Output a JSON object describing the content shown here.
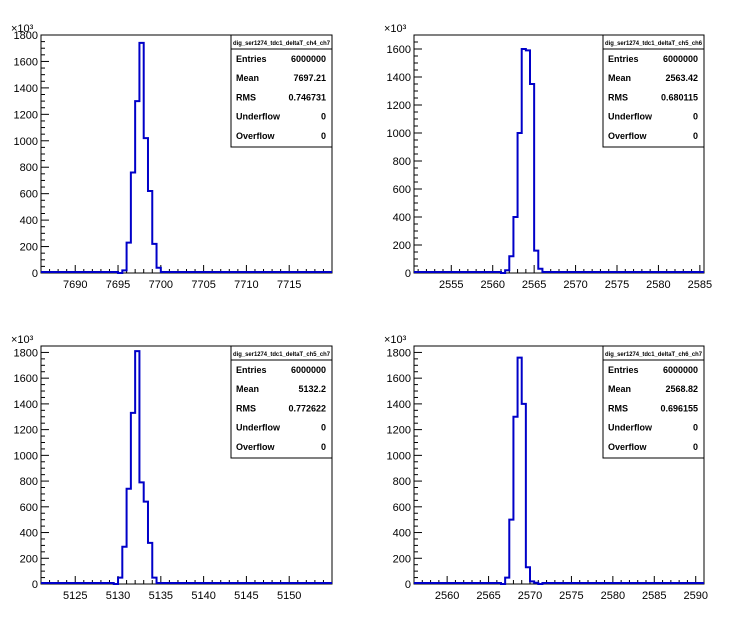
{
  "chart_data": [
    {
      "type": "bar",
      "stats": {
        "title": "dig_ser1274_tdc1_deltaT_ch4_ch7",
        "rows": [
          {
            "label": "Entries",
            "value": "6000000"
          },
          {
            "label": "Mean",
            "value": "7697.21"
          },
          {
            "label": "RMS",
            "value": "0.746731"
          },
          {
            "label": "Underflow",
            "value": "0"
          },
          {
            "label": "Overflow",
            "value": "0"
          }
        ]
      },
      "y_multiplier": "×10³",
      "xlim": [
        7686,
        7720
      ],
      "ylim": [
        0,
        1800
      ],
      "x_ticks": [
        "7690",
        "7695",
        "7700",
        "7705",
        "7710",
        "7715"
      ],
      "y_ticks": [
        "0",
        "200",
        "400",
        "600",
        "800",
        "1000",
        "1200",
        "1400",
        "1600",
        "1800"
      ],
      "bin_width": 0.5,
      "x": [
        7695.0,
        7695.5,
        7696.0,
        7696.5,
        7697.0,
        7697.5,
        7698.0,
        7698.5,
        7699.0,
        7699.5
      ],
      "values": [
        0,
        20,
        230,
        760,
        1300,
        1740,
        1020,
        620,
        220,
        40
      ]
    },
    {
      "type": "bar",
      "stats": {
        "title": "dig_ser1274_tdc1_deltaT_ch5_ch6",
        "rows": [
          {
            "label": "Entries",
            "value": "6000000"
          },
          {
            "label": "Mean",
            "value": "2563.42"
          },
          {
            "label": "RMS",
            "value": "0.680115"
          },
          {
            "label": "Underflow",
            "value": "0"
          },
          {
            "label": "Overflow",
            "value": "0"
          }
        ]
      },
      "y_multiplier": "×10³",
      "xlim": [
        2550.5,
        2585.5
      ],
      "ylim": [
        0,
        1700
      ],
      "x_ticks": [
        "2555",
        "2560",
        "2565",
        "2570",
        "2575",
        "2580",
        "2585"
      ],
      "y_ticks": [
        "0",
        "200",
        "400",
        "600",
        "800",
        "1000",
        "1200",
        "1400",
        "1600"
      ],
      "bin_width": 0.5,
      "x": [
        2561.0,
        2561.5,
        2562.0,
        2562.5,
        2563.0,
        2563.5,
        2564.0,
        2564.5,
        2565.0,
        2565.5
      ],
      "values": [
        0,
        20,
        120,
        400,
        1000,
        1600,
        1590,
        1350,
        160,
        30
      ]
    },
    {
      "type": "bar",
      "stats": {
        "title": "dig_ser1274_tdc1_deltaT_ch5_ch7",
        "rows": [
          {
            "label": "Entries",
            "value": "6000000"
          },
          {
            "label": "Mean",
            "value": "5132.2"
          },
          {
            "label": "RMS",
            "value": "0.772622"
          },
          {
            "label": "Underflow",
            "value": "0"
          },
          {
            "label": "Overflow",
            "value": "0"
          }
        ]
      },
      "y_multiplier": "×10³",
      "xlim": [
        5121,
        5155
      ],
      "ylim": [
        0,
        1850
      ],
      "x_ticks": [
        "5125",
        "5130",
        "5135",
        "5140",
        "5145",
        "5150"
      ],
      "y_ticks": [
        "0",
        "200",
        "400",
        "600",
        "800",
        "1000",
        "1200",
        "1400",
        "1600",
        "1800"
      ],
      "bin_width": 0.5,
      "x": [
        5129.5,
        5130.0,
        5130.5,
        5131.0,
        5131.5,
        5132.0,
        5132.5,
        5133.0,
        5133.5,
        5134.0
      ],
      "values": [
        0,
        50,
        290,
        740,
        1330,
        1810,
        790,
        640,
        320,
        50
      ]
    },
    {
      "type": "bar",
      "stats": {
        "title": "dig_ser1274_tdc1_deltaT_ch6_ch7",
        "rows": [
          {
            "label": "Entries",
            "value": "6000000"
          },
          {
            "label": "Mean",
            "value": "2568.82"
          },
          {
            "label": "RMS",
            "value": "0.696155"
          },
          {
            "label": "Underflow",
            "value": "0"
          },
          {
            "label": "Overflow",
            "value": "0"
          }
        ]
      },
      "y_multiplier": "×10³",
      "xlim": [
        2556,
        2591
      ],
      "ylim": [
        0,
        1850
      ],
      "x_ticks": [
        "2560",
        "2565",
        "2570",
        "2575",
        "2580",
        "2585",
        "2590"
      ],
      "y_ticks": [
        "0",
        "200",
        "400",
        "600",
        "800",
        "1000",
        "1200",
        "1400",
        "1600",
        "1800"
      ],
      "bin_width": 0.5,
      "x": [
        2566.5,
        2567.0,
        2567.5,
        2568.0,
        2568.5,
        2569.0,
        2569.5,
        2570.0,
        2570.5,
        2571.0
      ],
      "values": [
        0,
        50,
        500,
        1300,
        1760,
        1400,
        130,
        20,
        10,
        0
      ]
    }
  ]
}
